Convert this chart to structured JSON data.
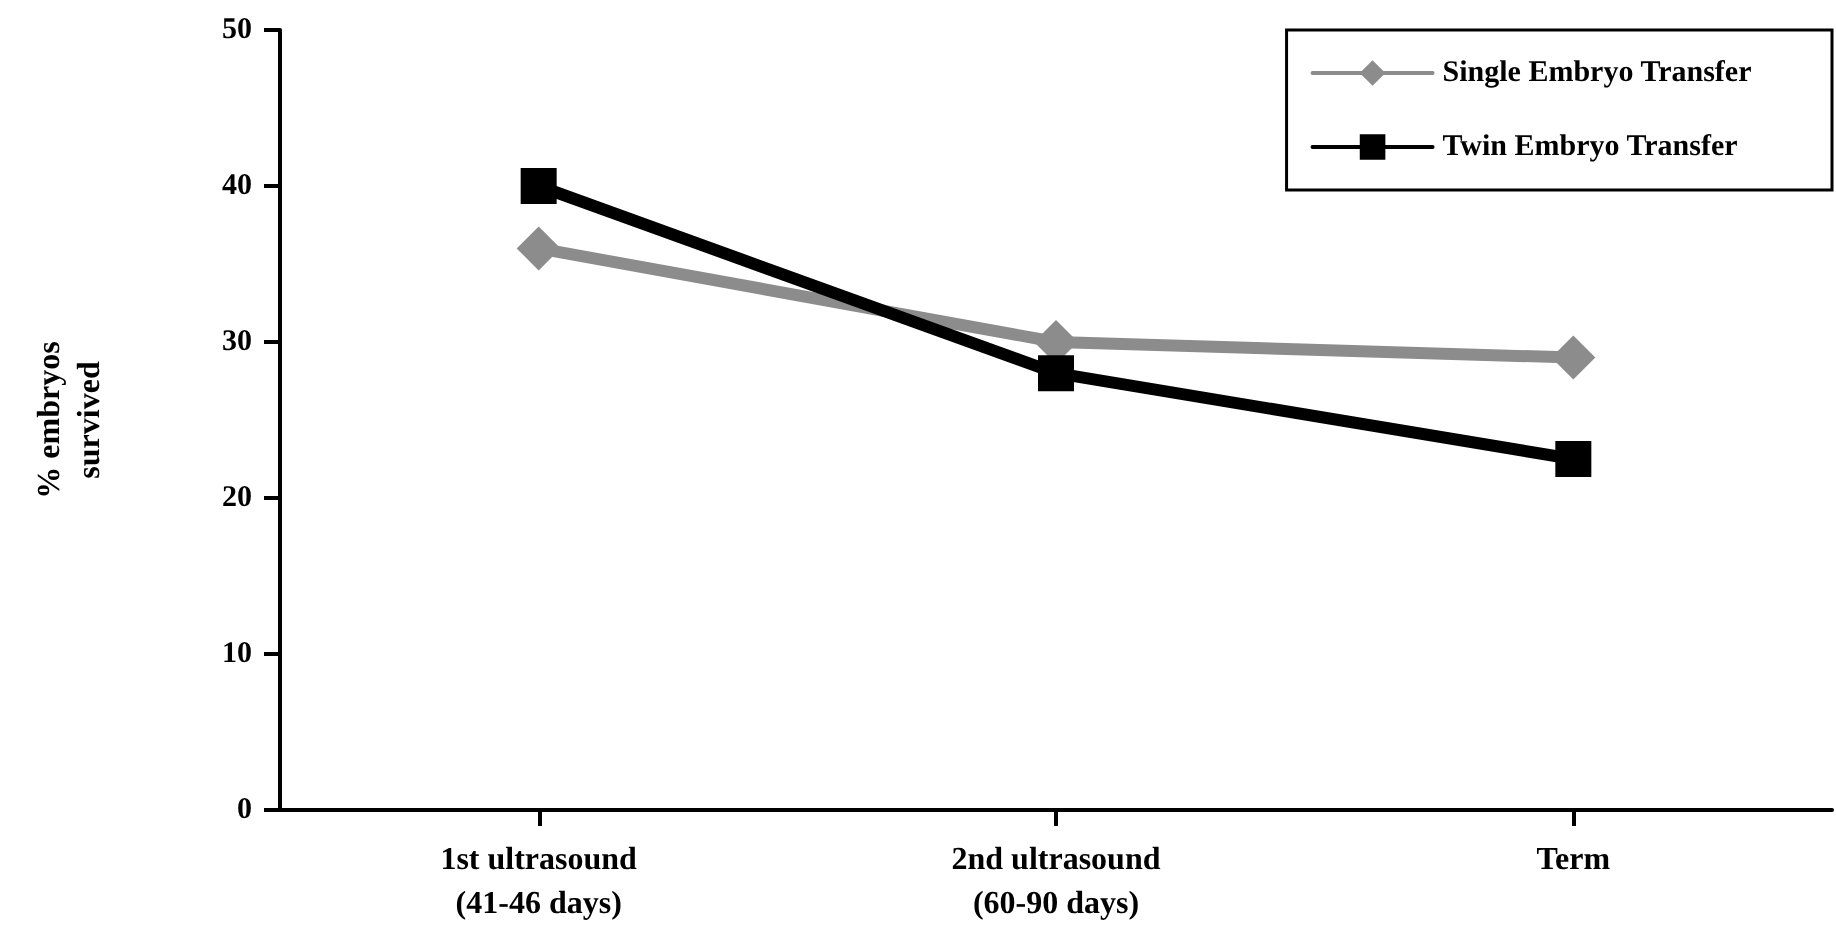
{
  "chart_data": {
    "type": "line",
    "ylabel": "% embryos\nsurvived",
    "categories": [
      "1st ultrasound\n(41-46 days)",
      "2nd ultrasound\n(60-90 days)",
      "Term"
    ],
    "series": [
      {
        "name": "Single Embryo Transfer",
        "color": "#8c8c8c",
        "marker": "diamond",
        "values": [
          36,
          30,
          29
        ]
      },
      {
        "name": "Twin Embryo Transfer",
        "color": "#000000",
        "marker": "square",
        "values": [
          40,
          28,
          22.5
        ]
      }
    ],
    "ylim": [
      0,
      50
    ],
    "yticks": [
      0,
      10,
      20,
      30,
      40,
      50
    ],
    "grid": false,
    "legend": "top right",
    "line_style": "solid"
  }
}
